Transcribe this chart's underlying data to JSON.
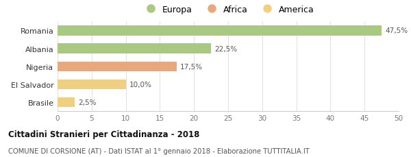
{
  "categories": [
    "Brasile",
    "El Salvador",
    "Nigeria",
    "Albania",
    "Romania"
  ],
  "values": [
    2.5,
    10.0,
    17.5,
    22.5,
    47.5
  ],
  "colors": [
    "#f0d080",
    "#f0d080",
    "#e8a87c",
    "#a8c97f",
    "#a8c97f"
  ],
  "bar_labels": [
    "2,5%",
    "10,0%",
    "17,5%",
    "22,5%",
    "47,5%"
  ],
  "legend": [
    {
      "label": "Europa",
      "color": "#a8c97f"
    },
    {
      "label": "Africa",
      "color": "#e8a87c"
    },
    {
      "label": "America",
      "color": "#f0d080"
    }
  ],
  "xlim": [
    0,
    50
  ],
  "xticks": [
    0,
    5,
    10,
    15,
    20,
    25,
    30,
    35,
    40,
    45,
    50
  ],
  "title": "Cittadini Stranieri per Cittadinanza - 2018",
  "subtitle": "COMUNE DI CORSIONE (AT) - Dati ISTAT al 1° gennaio 2018 - Elaborazione TUTTITALIA.IT",
  "background_color": "#ffffff"
}
